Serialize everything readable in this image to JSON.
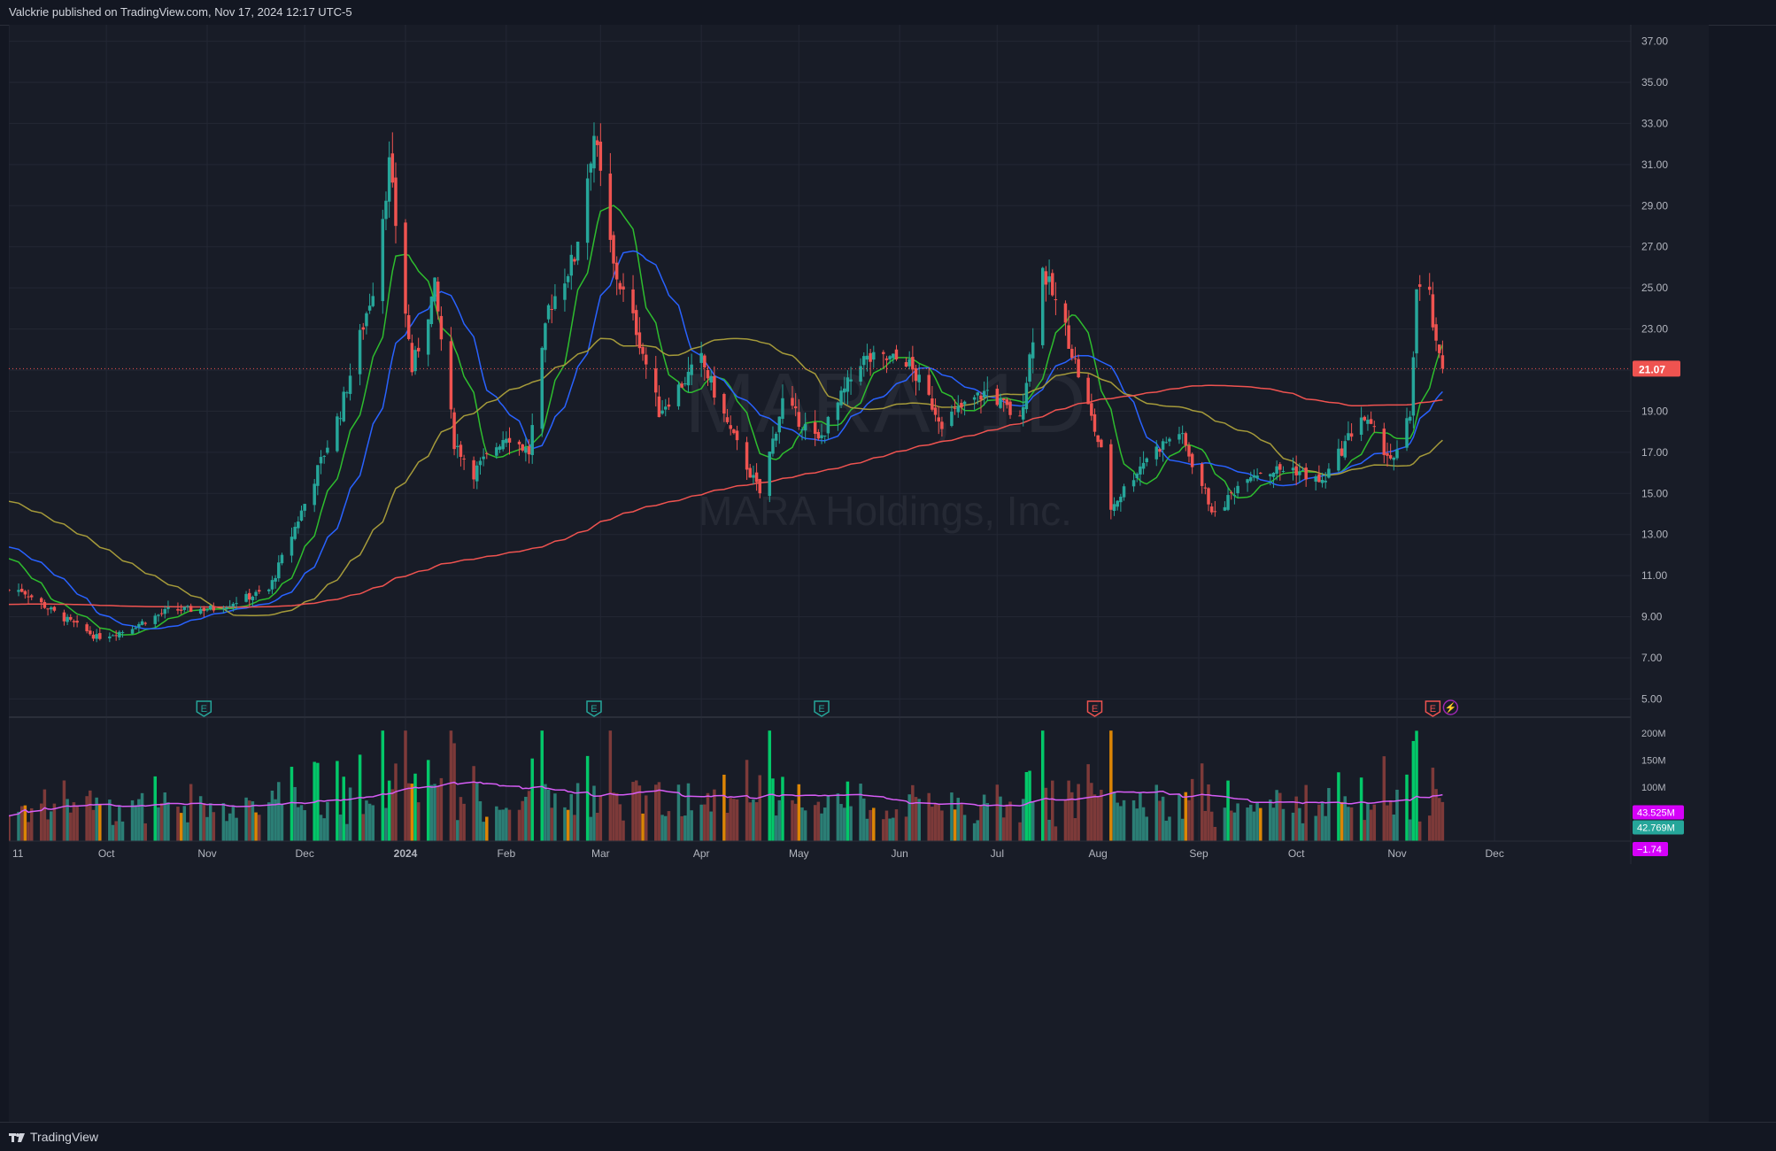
{
  "header": {
    "text": "Valckrie published on TradingView.com, Nov 17, 2024 12:17 UTC-5"
  },
  "watermark": {
    "symbol": "MARA, 1D",
    "name": "MARA Holdings, Inc."
  },
  "price_axis": {
    "ticks": [
      "37.00",
      "35.00",
      "33.00",
      "31.00",
      "29.00",
      "27.00",
      "25.00",
      "23.00",
      "21.00",
      "19.00",
      "17.00",
      "15.00",
      "13.00",
      "11.00",
      "9.00",
      "7.00",
      "5.00"
    ],
    "last_price": "21.07"
  },
  "volume_axis": {
    "ticks": [
      "200M",
      "150M",
      "100M"
    ],
    "label_a": "43.525M",
    "label_b": "42.769M",
    "label_c": "−1.74"
  },
  "time_axis": {
    "labels": [
      "11",
      "Oct",
      "Nov",
      "Dec",
      "2024",
      "Feb",
      "Mar",
      "Apr",
      "May",
      "Jun",
      "Jul",
      "Aug",
      "Sep",
      "Oct",
      "Nov",
      "Dec"
    ]
  },
  "earnings_markers": [
    "E",
    "E",
    "E",
    "E",
    "E"
  ],
  "dividend_marker": "⚡",
  "footer": {
    "logo_text": "TradingView"
  },
  "colors": {
    "bull": "#26a69a",
    "bear": "#ef5350",
    "ma_green": "#2ebd2e",
    "ma_blue": "#2962ff",
    "ma_olive": "#a59a3a",
    "ma_red": "#ef5350",
    "vol_ma": "#d65cf5"
  },
  "chart_data": [
    {
      "type": "candlestick",
      "title": "MARA, 1D",
      "xlabel": "",
      "ylabel": "",
      "ylim": [
        4.2,
        37.8
      ],
      "date_range": [
        "2023-09-01",
        "2024-11-15"
      ],
      "key_closes": [
        {
          "date": "2023-09-05",
          "close": 10.3
        },
        {
          "date": "2023-09-15",
          "close": 9.2
        },
        {
          "date": "2023-09-28",
          "close": 8.0
        },
        {
          "date": "2023-10-06",
          "close": 8.3
        },
        {
          "date": "2023-10-20",
          "close": 9.3
        },
        {
          "date": "2023-11-03",
          "close": 9.4
        },
        {
          "date": "2023-11-20",
          "close": 10.3
        },
        {
          "date": "2023-12-01",
          "close": 14.5
        },
        {
          "date": "2023-12-12",
          "close": 19.0
        },
        {
          "date": "2023-12-22",
          "close": 25.0
        },
        {
          "date": "2023-12-27",
          "close": 31.0
        },
        {
          "date": "2024-01-03",
          "close": 21.0
        },
        {
          "date": "2024-01-10",
          "close": 25.0
        },
        {
          "date": "2024-01-16",
          "close": 17.5
        },
        {
          "date": "2024-01-22",
          "close": 16.0
        },
        {
          "date": "2024-02-01",
          "close": 17.9
        },
        {
          "date": "2024-02-08",
          "close": 17.0
        },
        {
          "date": "2024-02-14",
          "close": 24.0
        },
        {
          "date": "2024-02-22",
          "close": 26.5
        },
        {
          "date": "2024-02-28",
          "close": 32.5
        },
        {
          "date": "2024-03-05",
          "close": 26.0
        },
        {
          "date": "2024-03-12",
          "close": 23.0
        },
        {
          "date": "2024-03-19",
          "close": 19.0
        },
        {
          "date": "2024-04-01",
          "close": 21.5
        },
        {
          "date": "2024-04-10",
          "close": 18.0
        },
        {
          "date": "2024-04-19",
          "close": 15.0
        },
        {
          "date": "2024-04-26",
          "close": 19.5
        },
        {
          "date": "2024-05-07",
          "close": 17.5
        },
        {
          "date": "2024-05-20",
          "close": 21.5
        },
        {
          "date": "2024-06-03",
          "close": 21.5
        },
        {
          "date": "2024-06-14",
          "close": 18.5
        },
        {
          "date": "2024-06-28",
          "close": 20.0
        },
        {
          "date": "2024-07-08",
          "close": 18.5
        },
        {
          "date": "2024-07-15",
          "close": 25.9
        },
        {
          "date": "2024-07-22",
          "close": 23.0
        },
        {
          "date": "2024-08-02",
          "close": 17.0
        },
        {
          "date": "2024-08-05",
          "close": 14.3
        },
        {
          "date": "2024-08-16",
          "close": 16.8
        },
        {
          "date": "2024-08-26",
          "close": 18.0
        },
        {
          "date": "2024-09-06",
          "close": 13.9
        },
        {
          "date": "2024-09-16",
          "close": 16.0
        },
        {
          "date": "2024-09-30",
          "close": 16.2
        },
        {
          "date": "2024-10-09",
          "close": 15.5
        },
        {
          "date": "2024-10-21",
          "close": 18.8
        },
        {
          "date": "2024-10-31",
          "close": 16.5
        },
        {
          "date": "2024-11-05",
          "close": 18.8
        },
        {
          "date": "2024-11-07",
          "close": 24.9
        },
        {
          "date": "2024-11-11",
          "close": 24.5
        },
        {
          "date": "2024-11-13",
          "close": 22.0
        },
        {
          "date": "2024-11-15",
          "close": 21.07
        }
      ],
      "moving_averages": [
        {
          "color": "green",
          "start": 12.0,
          "end": 21.0
        },
        {
          "color": "blue",
          "start": 12.5,
          "end": 19.6
        },
        {
          "color": "olive",
          "start": 14.7,
          "end": 17.4
        },
        {
          "color": "red",
          "start": 9.6,
          "end": 19.4
        }
      ],
      "earnings_dates": [
        "2023-10-31",
        "2024-02-28",
        "2024-05-08",
        "2024-07-31",
        "2024-11-12"
      ]
    },
    {
      "type": "bar",
      "title": "Volume",
      "ylim": [
        0,
        225
      ],
      "unit": "M",
      "peak": {
        "date": "2024-01-03",
        "value": 212
      },
      "last_value": 42.769,
      "ma_last": 43.525
    }
  ]
}
